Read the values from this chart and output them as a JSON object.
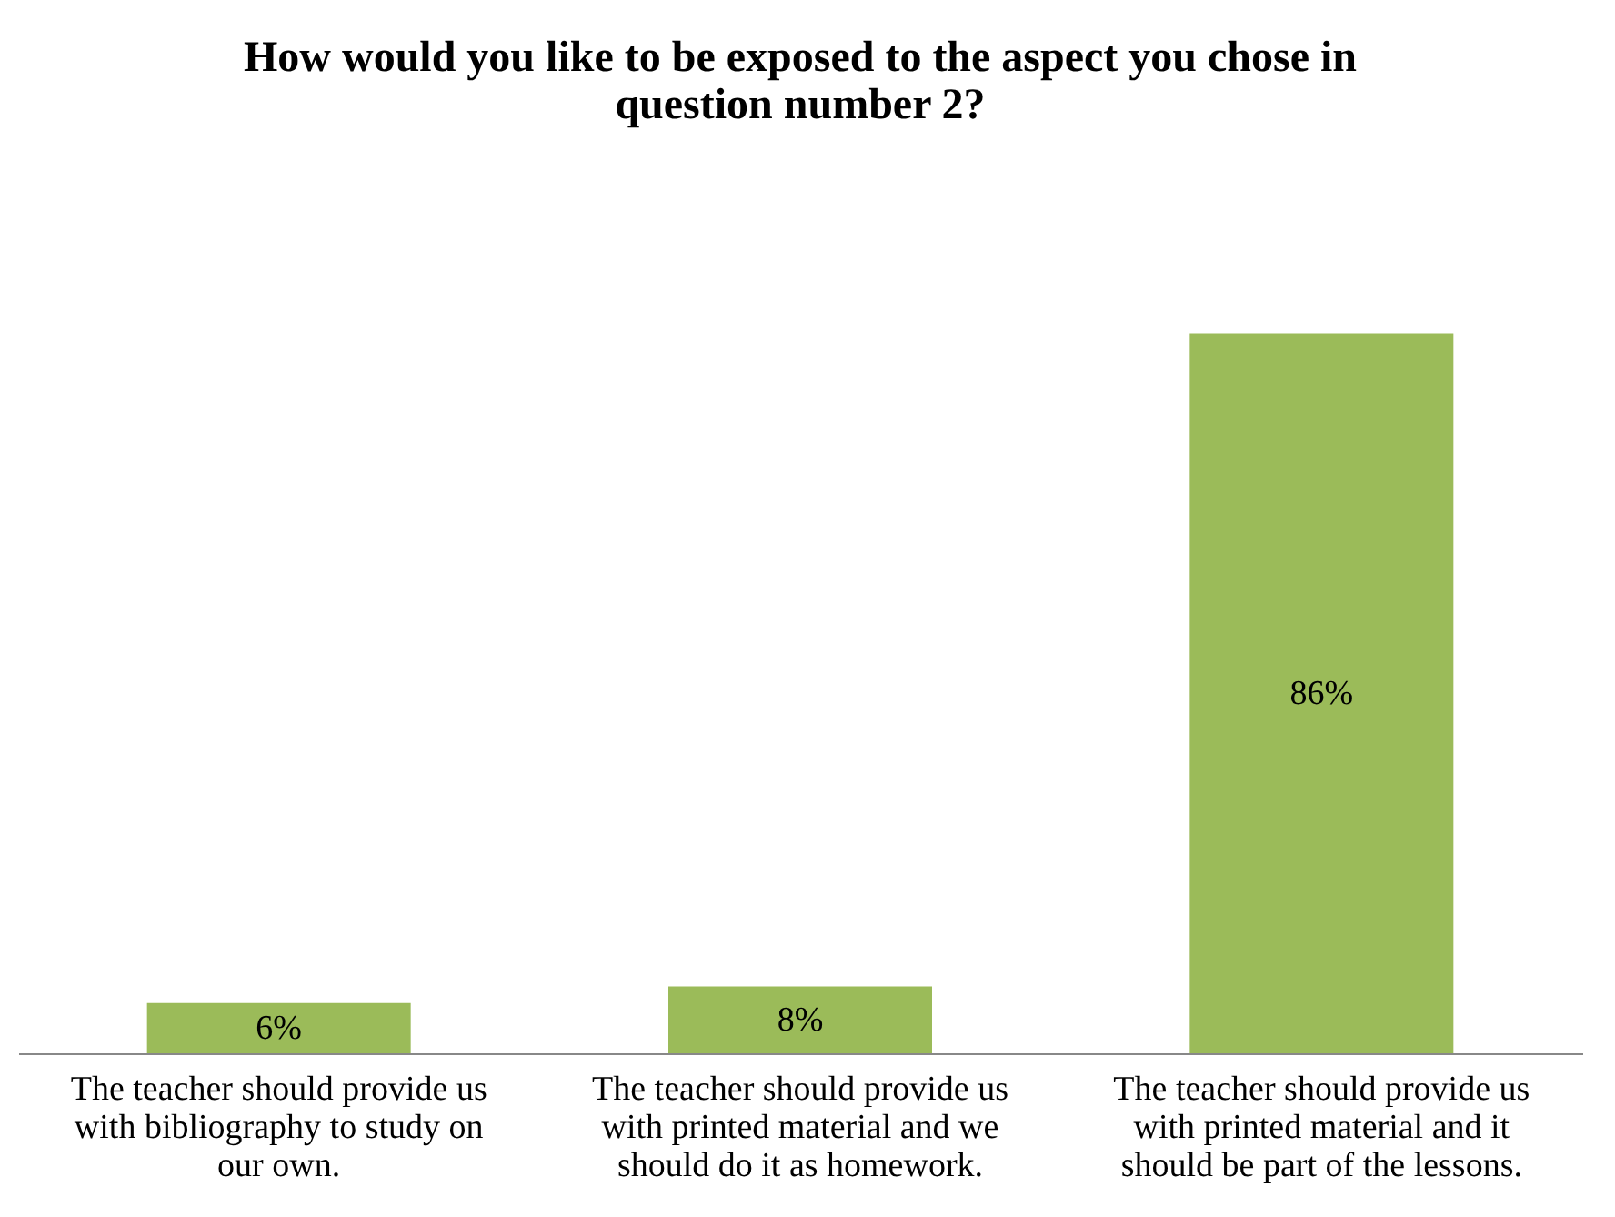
{
  "chart_data": {
    "type": "bar",
    "title": "How would you like to be exposed to the aspect you chose in question number 2?",
    "categories": [
      "The teacher should provide us with bibliography to study on our own.",
      "The teacher should provide us with printed material and we should do it as homework.",
      "The teacher should provide us with printed material and it should be part of the lessons."
    ],
    "values": [
      6,
      8,
      86
    ],
    "color": "#9bbb59",
    "value_labels": [
      "6%",
      "8%",
      "86%"
    ],
    "grid": false,
    "tick_labels": "x"
  }
}
